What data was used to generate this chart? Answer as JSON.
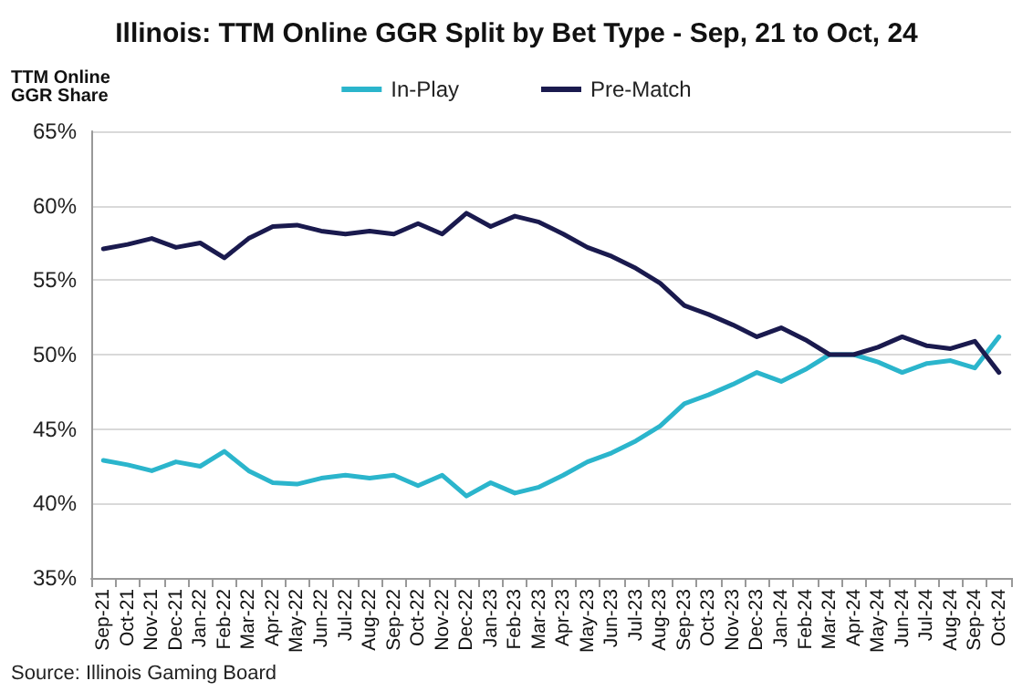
{
  "chart_data": {
    "type": "line",
    "title": "Illinois: TTM Online GGR Split by Bet Type - Sep, 21 to Oct, 24",
    "ylabel": "TTM Online\nGGR Share",
    "categories": [
      "Sep-21",
      "Oct-21",
      "Nov-21",
      "Dec-21",
      "Jan-22",
      "Feb-22",
      "Mar-22",
      "Apr-22",
      "May-22",
      "Jun-22",
      "Jul-22",
      "Aug-22",
      "Sep-22",
      "Oct-22",
      "Nov-22",
      "Dec-22",
      "Jan-23",
      "Feb-23",
      "Mar-23",
      "Apr-23",
      "May-23",
      "Jun-23",
      "Jul-23",
      "Aug-23",
      "Sep-23",
      "Oct-23",
      "Nov-23",
      "Dec-23",
      "Jan-24",
      "Feb-24",
      "Mar-24",
      "Apr-24",
      "May-24",
      "Jun-24",
      "Jul-24",
      "Aug-24",
      "Sep-24",
      "Oct-24"
    ],
    "series": [
      {
        "name": "In-Play",
        "color": "#2bb5cc",
        "values": [
          42.9,
          42.6,
          42.2,
          42.8,
          42.5,
          43.5,
          42.2,
          41.4,
          41.3,
          41.7,
          41.9,
          41.7,
          41.9,
          41.2,
          41.9,
          40.5,
          41.4,
          40.7,
          41.1,
          41.9,
          42.8,
          43.4,
          44.2,
          45.2,
          46.7,
          47.3,
          48.0,
          48.8,
          48.2,
          49.0,
          50.0,
          50.0,
          49.5,
          48.8,
          49.4,
          49.6,
          49.1,
          51.2
        ]
      },
      {
        "name": "Pre-Match",
        "color": "#1a1a4e",
        "values": [
          57.1,
          57.4,
          57.8,
          57.2,
          57.5,
          56.5,
          57.8,
          58.6,
          58.7,
          58.3,
          58.1,
          58.3,
          58.1,
          58.8,
          58.1,
          59.5,
          58.6,
          59.3,
          58.9,
          58.1,
          57.2,
          56.6,
          55.8,
          54.8,
          53.3,
          52.7,
          52.0,
          51.2,
          51.8,
          51.0,
          50.0,
          50.0,
          50.5,
          51.2,
          50.6,
          50.4,
          50.9,
          48.8
        ]
      }
    ],
    "ylim": [
      35,
      65
    ],
    "yticks": [
      {
        "value": 35,
        "label": "35%"
      },
      {
        "value": 40,
        "label": "40%"
      },
      {
        "value": 45,
        "label": "45%"
      },
      {
        "value": 50,
        "label": "50%"
      },
      {
        "value": 55,
        "label": "55%"
      },
      {
        "value": 60,
        "label": "60%"
      },
      {
        "value": 65,
        "label": "65%"
      }
    ],
    "grid": "y",
    "legend": "top",
    "marker": "none",
    "line_style": "solid",
    "annotations": [
      "Source: Illinois Gaming Board"
    ]
  }
}
